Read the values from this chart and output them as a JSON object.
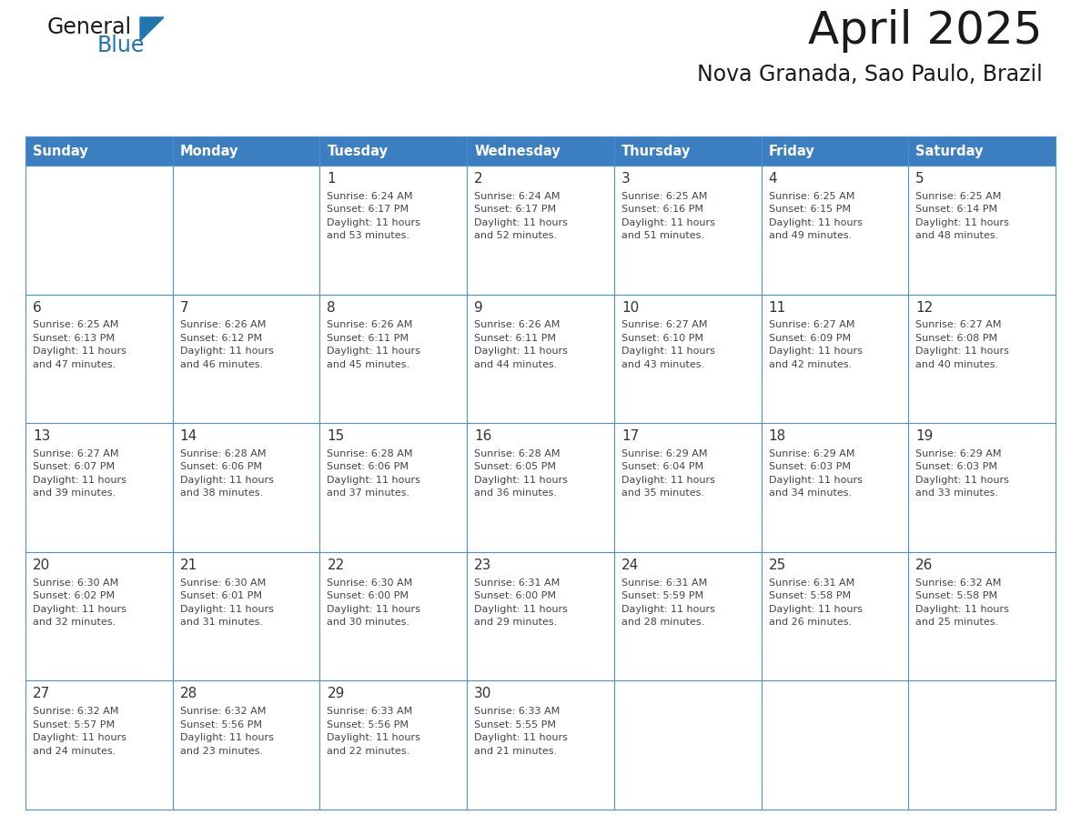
{
  "title": "April 2025",
  "subtitle": "Nova Granada, Sao Paulo, Brazil",
  "header_bg_color": "#3c7fc0",
  "header_text_color": "#ffffff",
  "cell_bg_color": "#ffffff",
  "grid_line_color": "#4a90d9",
  "day_text_color": "#333333",
  "content_text_color": "#444444",
  "title_color": "#1a1a1a",
  "subtitle_color": "#1a1a1a",
  "days_of_week": [
    "Sunday",
    "Monday",
    "Tuesday",
    "Wednesday",
    "Thursday",
    "Friday",
    "Saturday"
  ],
  "calendar_data": [
    [
      {
        "day": "",
        "sunrise": "",
        "sunset": "",
        "daylight_line1": "",
        "daylight_line2": ""
      },
      {
        "day": "",
        "sunrise": "",
        "sunset": "",
        "daylight_line1": "",
        "daylight_line2": ""
      },
      {
        "day": "1",
        "sunrise": "6:24 AM",
        "sunset": "6:17 PM",
        "daylight_line1": "Daylight: 11 hours",
        "daylight_line2": "and 53 minutes."
      },
      {
        "day": "2",
        "sunrise": "6:24 AM",
        "sunset": "6:17 PM",
        "daylight_line1": "Daylight: 11 hours",
        "daylight_line2": "and 52 minutes."
      },
      {
        "day": "3",
        "sunrise": "6:25 AM",
        "sunset": "6:16 PM",
        "daylight_line1": "Daylight: 11 hours",
        "daylight_line2": "and 51 minutes."
      },
      {
        "day": "4",
        "sunrise": "6:25 AM",
        "sunset": "6:15 PM",
        "daylight_line1": "Daylight: 11 hours",
        "daylight_line2": "and 49 minutes."
      },
      {
        "day": "5",
        "sunrise": "6:25 AM",
        "sunset": "6:14 PM",
        "daylight_line1": "Daylight: 11 hours",
        "daylight_line2": "and 48 minutes."
      }
    ],
    [
      {
        "day": "6",
        "sunrise": "6:25 AM",
        "sunset": "6:13 PM",
        "daylight_line1": "Daylight: 11 hours",
        "daylight_line2": "and 47 minutes."
      },
      {
        "day": "7",
        "sunrise": "6:26 AM",
        "sunset": "6:12 PM",
        "daylight_line1": "Daylight: 11 hours",
        "daylight_line2": "and 46 minutes."
      },
      {
        "day": "8",
        "sunrise": "6:26 AM",
        "sunset": "6:11 PM",
        "daylight_line1": "Daylight: 11 hours",
        "daylight_line2": "and 45 minutes."
      },
      {
        "day": "9",
        "sunrise": "6:26 AM",
        "sunset": "6:11 PM",
        "daylight_line1": "Daylight: 11 hours",
        "daylight_line2": "and 44 minutes."
      },
      {
        "day": "10",
        "sunrise": "6:27 AM",
        "sunset": "6:10 PM",
        "daylight_line1": "Daylight: 11 hours",
        "daylight_line2": "and 43 minutes."
      },
      {
        "day": "11",
        "sunrise": "6:27 AM",
        "sunset": "6:09 PM",
        "daylight_line1": "Daylight: 11 hours",
        "daylight_line2": "and 42 minutes."
      },
      {
        "day": "12",
        "sunrise": "6:27 AM",
        "sunset": "6:08 PM",
        "daylight_line1": "Daylight: 11 hours",
        "daylight_line2": "and 40 minutes."
      }
    ],
    [
      {
        "day": "13",
        "sunrise": "6:27 AM",
        "sunset": "6:07 PM",
        "daylight_line1": "Daylight: 11 hours",
        "daylight_line2": "and 39 minutes."
      },
      {
        "day": "14",
        "sunrise": "6:28 AM",
        "sunset": "6:06 PM",
        "daylight_line1": "Daylight: 11 hours",
        "daylight_line2": "and 38 minutes."
      },
      {
        "day": "15",
        "sunrise": "6:28 AM",
        "sunset": "6:06 PM",
        "daylight_line1": "Daylight: 11 hours",
        "daylight_line2": "and 37 minutes."
      },
      {
        "day": "16",
        "sunrise": "6:28 AM",
        "sunset": "6:05 PM",
        "daylight_line1": "Daylight: 11 hours",
        "daylight_line2": "and 36 minutes."
      },
      {
        "day": "17",
        "sunrise": "6:29 AM",
        "sunset": "6:04 PM",
        "daylight_line1": "Daylight: 11 hours",
        "daylight_line2": "and 35 minutes."
      },
      {
        "day": "18",
        "sunrise": "6:29 AM",
        "sunset": "6:03 PM",
        "daylight_line1": "Daylight: 11 hours",
        "daylight_line2": "and 34 minutes."
      },
      {
        "day": "19",
        "sunrise": "6:29 AM",
        "sunset": "6:03 PM",
        "daylight_line1": "Daylight: 11 hours",
        "daylight_line2": "and 33 minutes."
      }
    ],
    [
      {
        "day": "20",
        "sunrise": "6:30 AM",
        "sunset": "6:02 PM",
        "daylight_line1": "Daylight: 11 hours",
        "daylight_line2": "and 32 minutes."
      },
      {
        "day": "21",
        "sunrise": "6:30 AM",
        "sunset": "6:01 PM",
        "daylight_line1": "Daylight: 11 hours",
        "daylight_line2": "and 31 minutes."
      },
      {
        "day": "22",
        "sunrise": "6:30 AM",
        "sunset": "6:00 PM",
        "daylight_line1": "Daylight: 11 hours",
        "daylight_line2": "and 30 minutes."
      },
      {
        "day": "23",
        "sunrise": "6:31 AM",
        "sunset": "6:00 PM",
        "daylight_line1": "Daylight: 11 hours",
        "daylight_line2": "and 29 minutes."
      },
      {
        "day": "24",
        "sunrise": "6:31 AM",
        "sunset": "5:59 PM",
        "daylight_line1": "Daylight: 11 hours",
        "daylight_line2": "and 28 minutes."
      },
      {
        "day": "25",
        "sunrise": "6:31 AM",
        "sunset": "5:58 PM",
        "daylight_line1": "Daylight: 11 hours",
        "daylight_line2": "and 26 minutes."
      },
      {
        "day": "26",
        "sunrise": "6:32 AM",
        "sunset": "5:58 PM",
        "daylight_line1": "Daylight: 11 hours",
        "daylight_line2": "and 25 minutes."
      }
    ],
    [
      {
        "day": "27",
        "sunrise": "6:32 AM",
        "sunset": "5:57 PM",
        "daylight_line1": "Daylight: 11 hours",
        "daylight_line2": "and 24 minutes."
      },
      {
        "day": "28",
        "sunrise": "6:32 AM",
        "sunset": "5:56 PM",
        "daylight_line1": "Daylight: 11 hours",
        "daylight_line2": "and 23 minutes."
      },
      {
        "day": "29",
        "sunrise": "6:33 AM",
        "sunset": "5:56 PM",
        "daylight_line1": "Daylight: 11 hours",
        "daylight_line2": "and 22 minutes."
      },
      {
        "day": "30",
        "sunrise": "6:33 AM",
        "sunset": "5:55 PM",
        "daylight_line1": "Daylight: 11 hours",
        "daylight_line2": "and 21 minutes."
      },
      {
        "day": "",
        "sunrise": "",
        "sunset": "",
        "daylight_line1": "",
        "daylight_line2": ""
      },
      {
        "day": "",
        "sunrise": "",
        "sunset": "",
        "daylight_line1": "",
        "daylight_line2": ""
      },
      {
        "day": "",
        "sunrise": "",
        "sunset": "",
        "daylight_line1": "",
        "daylight_line2": ""
      }
    ]
  ],
  "logo_text_general": "General",
  "logo_text_blue": "Blue",
  "logo_black_color": "#1a1a1a",
  "logo_blue_color": "#2176ae",
  "fig_width": 11.88,
  "fig_height": 9.18,
  "dpi": 100
}
